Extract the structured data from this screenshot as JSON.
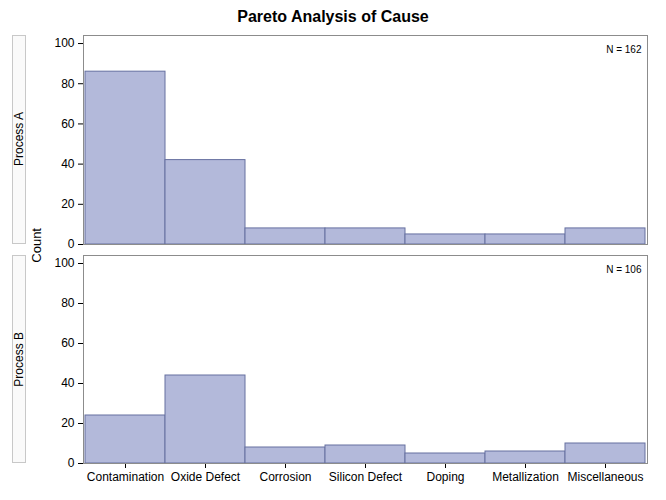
{
  "chart_data": {
    "type": "bar",
    "title": "Pareto Analysis of Cause",
    "ylabel": "Count",
    "categories": [
      "Contamination",
      "Oxide Defect",
      "Corrosion",
      "Silicon Defect",
      "Doping",
      "Metallization",
      "Miscellaneous"
    ],
    "series": [
      {
        "name": "Process A",
        "color": "#b3b9da",
        "values": [
          86,
          42,
          8,
          8,
          5,
          5,
          8
        ],
        "annotation": "N = 162"
      },
      {
        "name": "Process B",
        "color": "#b3b9da",
        "values": [
          24,
          44,
          8,
          9,
          5,
          6,
          10
        ],
        "annotation": "N = 106"
      }
    ],
    "ylim": [
      0,
      104
    ],
    "yticks": [
      0,
      20,
      40,
      60,
      80,
      100
    ],
    "grid": false
  }
}
